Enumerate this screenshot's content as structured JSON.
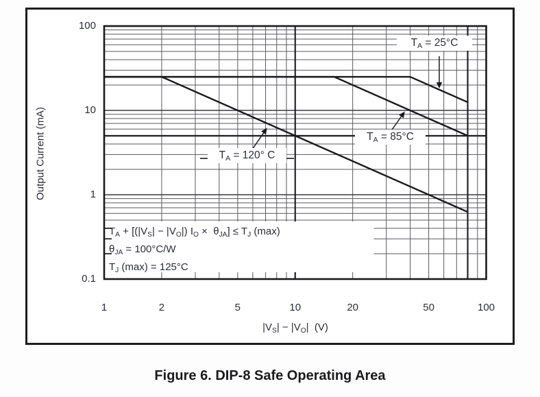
{
  "figure": {
    "caption": "Figure 6. DIP-8 Safe Operating Area"
  },
  "chart_data": {
    "type": "line",
    "title": "DIP-8 Safe Operating Area",
    "xlabel": "|Vs| - |Vo|  (V)",
    "ylabel": "Output Current (mA)",
    "xscale": "log",
    "yscale": "log",
    "xlim": [
      1,
      100
    ],
    "ylim": [
      0.1,
      100
    ],
    "x_tick_values": [
      1,
      2,
      5,
      10,
      20,
      50,
      100
    ],
    "x_tick_labels": [
      "1",
      "2",
      "5",
      "10",
      "20",
      "50",
      "100"
    ],
    "y_tick_values": [
      100,
      10,
      1,
      0.1
    ],
    "y_tick_labels": [
      "100",
      "10",
      "1",
      "0.1"
    ],
    "grid": {
      "minor_log_grid": true,
      "bold_x_values": [
        10,
        80
      ],
      "bold_y_values": [
        5
      ]
    },
    "series": [
      {
        "id": "ta25",
        "name": "TA = 25C",
        "points": [
          [
            1,
            25
          ],
          [
            40,
            25
          ],
          [
            80,
            12.5
          ]
        ]
      },
      {
        "id": "ta85",
        "name": "TA = 85C",
        "points": [
          [
            1,
            25
          ],
          [
            16,
            25
          ],
          [
            80,
            5
          ]
        ]
      },
      {
        "id": "ta120",
        "name": "TA = 120C",
        "points": [
          [
            1,
            25
          ],
          [
            2,
            25
          ],
          [
            80,
            0.625
          ]
        ]
      }
    ],
    "xlabel_rich": [
      {
        "t": "|V"
      },
      {
        "t": "S",
        "sub": true
      },
      {
        "t": "| − |V"
      },
      {
        "t": "O",
        "sub": true
      },
      {
        "t": "|  (V)"
      }
    ],
    "note_lines": [
      "TA + [(|VS| − |VO|) IO × θJA] ≤ TJ (max)",
      "θJA = 100°C/W",
      "TJ (max) = 125°C"
    ],
    "note_rich": {
      "line1": [
        {
          "t": "T"
        },
        {
          "t": "A",
          "sub": true
        },
        {
          "t": " + [(|V"
        },
        {
          "t": "S",
          "sub": true
        },
        {
          "t": "| − |V"
        },
        {
          "t": "O",
          "sub": true
        },
        {
          "t": "|) I"
        },
        {
          "t": "O",
          "sub": true
        },
        {
          "t": " ×  θ"
        },
        {
          "t": "JA",
          "sub": true
        },
        {
          "t": "] ≤ T"
        },
        {
          "t": "J",
          "sub": true
        },
        {
          "t": " (max)"
        }
      ],
      "line2": [
        {
          "t": "θ"
        },
        {
          "t": "JA",
          "sub": true
        },
        {
          "t": " = 100°C/W"
        }
      ],
      "line3": [
        {
          "t": "T"
        },
        {
          "t": "J",
          "sub": true
        },
        {
          "t": " (max) = 125°C"
        }
      ]
    },
    "series_labels_rich": {
      "ta25": [
        {
          "t": "T"
        },
        {
          "t": "A",
          "sub": true
        },
        {
          "t": " = 25°C"
        }
      ],
      "ta85": [
        {
          "t": "T"
        },
        {
          "t": "A",
          "sub": true
        },
        {
          "t": " = 85°C"
        }
      ],
      "ta120": [
        {
          "t": "T"
        },
        {
          "t": "A",
          "sub": true
        },
        {
          "t": " = 120° C"
        }
      ]
    },
    "colors": {
      "curve": "#1a1a1c",
      "grid_minor": "#59595e",
      "grid_major": "#38383c",
      "grid_bold": "#232327",
      "text": "#2b2d36",
      "background": "#ffffff"
    }
  }
}
